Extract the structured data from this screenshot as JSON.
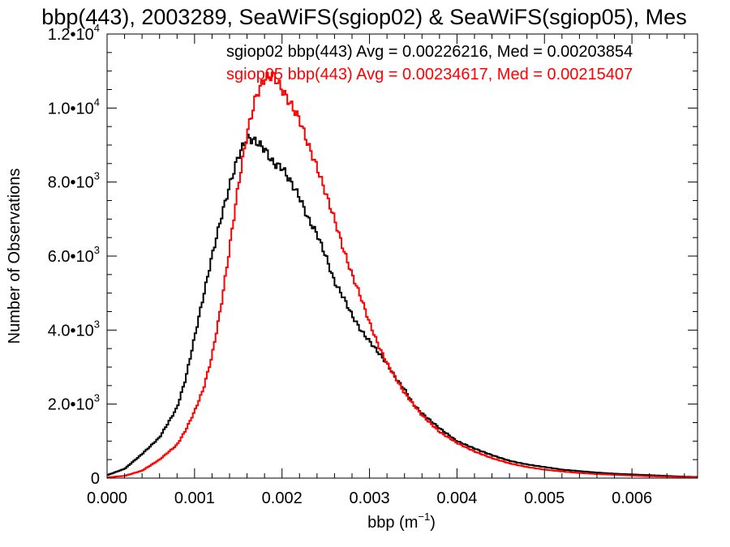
{
  "chart_data": {
    "type": "line",
    "title": "bbp(443), 2003289, SeaWiFS(sgiop02) & SeaWiFS(sgiop05), Mes",
    "xlabel": "bbp (m",
    "xlabel_sup": "−1",
    "xlabel_close": ")",
    "ylabel": "Number of Observations",
    "xlim": [
      0.0,
      0.00675
    ],
    "ylim": [
      0,
      12000
    ],
    "x_ticks": [
      {
        "value": 0.0,
        "label": "0.000"
      },
      {
        "value": 0.001,
        "label": "0.001"
      },
      {
        "value": 0.002,
        "label": "0.002"
      },
      {
        "value": 0.003,
        "label": "0.003"
      },
      {
        "value": 0.004,
        "label": "0.004"
      },
      {
        "value": 0.005,
        "label": "0.005"
      },
      {
        "value": 0.006,
        "label": "0.006"
      }
    ],
    "y_ticks": [
      {
        "value": 0,
        "mant": "0",
        "exp": ""
      },
      {
        "value": 2000,
        "mant": "2.0•10",
        "exp": "3"
      },
      {
        "value": 4000,
        "mant": "4.0•10",
        "exp": "3"
      },
      {
        "value": 6000,
        "mant": "6.0•10",
        "exp": "3"
      },
      {
        "value": 8000,
        "mant": "8.0•10",
        "exp": "3"
      },
      {
        "value": 10000,
        "mant": "1.0•10",
        "exp": "4"
      },
      {
        "value": 12000,
        "mant": "1.2•10",
        "exp": "4"
      }
    ],
    "grid": false,
    "legend_position": "top-right",
    "series": [
      {
        "name": "sgiop02 bbp(443) Avg = 0.00226216, Med = 0.00203854",
        "color": "#000000",
        "x": [
          0.0,
          0.0002,
          0.0004,
          0.0006,
          0.0008,
          0.0009,
          0.001,
          0.0011,
          0.0012,
          0.0013,
          0.0014,
          0.0015,
          0.0016,
          0.0017,
          0.0018,
          0.0019,
          0.002,
          0.0021,
          0.0022,
          0.0023,
          0.0024,
          0.0025,
          0.0026,
          0.0027,
          0.0028,
          0.0029,
          0.003,
          0.0031,
          0.0032,
          0.0033,
          0.0034,
          0.0035,
          0.0036,
          0.0038,
          0.004,
          0.0042,
          0.0044,
          0.0046,
          0.0048,
          0.005,
          0.0052,
          0.0054,
          0.0056,
          0.0058,
          0.006,
          0.0062,
          0.0064,
          0.0066,
          0.00675
        ],
        "y": [
          80,
          250,
          650,
          1100,
          1900,
          2700,
          3800,
          4900,
          6000,
          7000,
          7900,
          8700,
          9200,
          9100,
          8900,
          8500,
          8400,
          8000,
          7600,
          7000,
          6600,
          6000,
          5300,
          4900,
          4400,
          4000,
          3700,
          3400,
          3100,
          2700,
          2400,
          2000,
          1750,
          1350,
          1000,
          800,
          620,
          470,
          370,
          300,
          230,
          190,
          150,
          120,
          100,
          80,
          60,
          40,
          30
        ]
      },
      {
        "name": "sgiop05 bbp(443) Avg = 0.00234617, Med = 0.00215407",
        "color": "#ff0000",
        "x": [
          0.0,
          0.0002,
          0.0004,
          0.0006,
          0.0008,
          0.0009,
          0.001,
          0.0011,
          0.0012,
          0.0013,
          0.0014,
          0.0015,
          0.0016,
          0.0017,
          0.0018,
          0.0019,
          0.002,
          0.0021,
          0.0022,
          0.0023,
          0.0024,
          0.0025,
          0.0026,
          0.0027,
          0.0028,
          0.0029,
          0.003,
          0.0031,
          0.0032,
          0.0033,
          0.0034,
          0.0035,
          0.0036,
          0.0038,
          0.004,
          0.0042,
          0.0044,
          0.0046,
          0.0048,
          0.005,
          0.0052,
          0.0054,
          0.0056,
          0.0058,
          0.006,
          0.0062,
          0.0064,
          0.0066,
          0.00675
        ],
        "y": [
          20,
          60,
          200,
          500,
          900,
          1300,
          1800,
          2400,
          3300,
          4600,
          6200,
          7900,
          9300,
          10300,
          10800,
          10900,
          10500,
          10100,
          9700,
          9000,
          8400,
          7700,
          7000,
          6200,
          5500,
          4900,
          4200,
          3600,
          3100,
          2700,
          2300,
          2000,
          1700,
          1250,
          950,
          720,
          540,
          400,
          300,
          230,
          180,
          140,
          110,
          90,
          70,
          50,
          40,
          30,
          20
        ]
      }
    ]
  }
}
